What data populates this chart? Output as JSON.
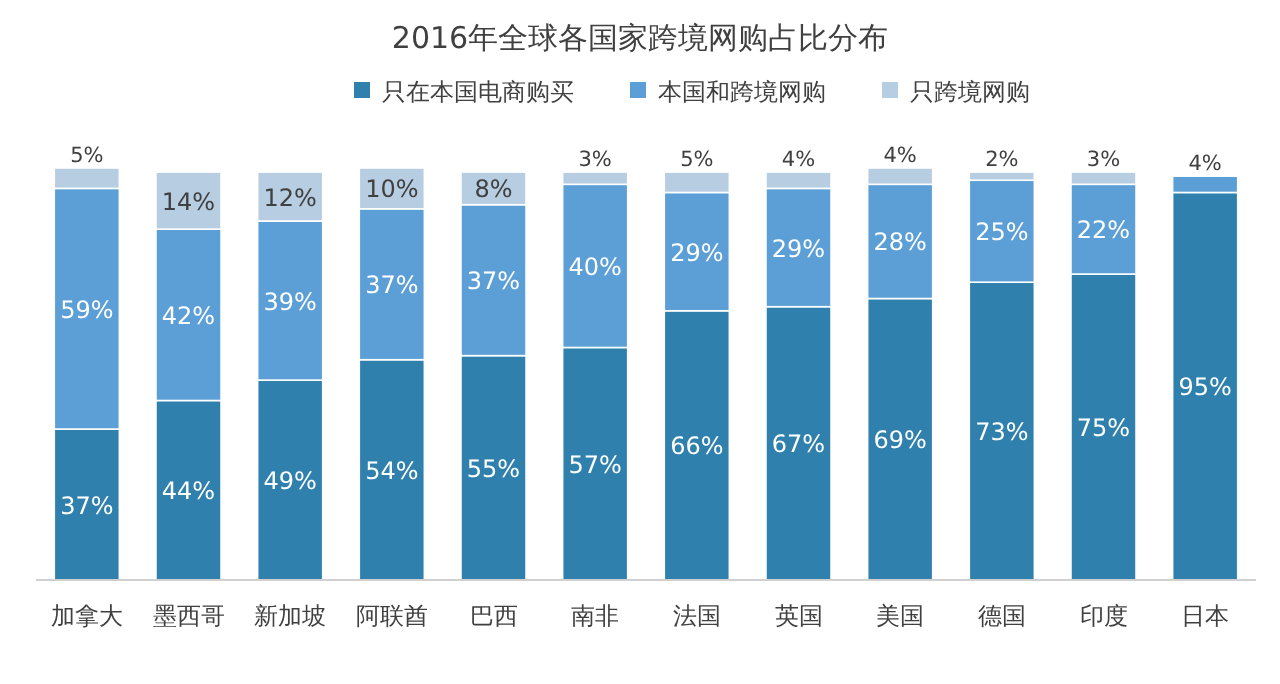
{
  "chart_data": {
    "type": "bar",
    "stacked": true,
    "title": "2016年全球各国家跨境网购占比分布",
    "legend": "top",
    "categories": [
      "加拿大",
      "墨西哥",
      "新加坡",
      "阿联酋",
      "巴西",
      "南非",
      "法国",
      "英国",
      "美国",
      "德国",
      "印度",
      "日本"
    ],
    "series": [
      {
        "name": "只在本国电商购买",
        "color": "#2f80ad",
        "values": [
          37,
          44,
          49,
          54,
          55,
          57,
          66,
          67,
          69,
          73,
          75,
          95
        ],
        "value_labels": [
          "37%",
          "44%",
          "49%",
          "54%",
          "55%",
          "57%",
          "66%",
          "67%",
          "69%",
          "73%",
          "75%",
          "95%"
        ]
      },
      {
        "name": "本国和跨境网购",
        "color": "#5b9fd6",
        "values": [
          59,
          42,
          39,
          37,
          37,
          40,
          29,
          29,
          28,
          25,
          22,
          4
        ],
        "value_labels": [
          "59%",
          "42%",
          "39%",
          "37%",
          "37%",
          "40%",
          "29%",
          "29%",
          "28%",
          "25%",
          "22%",
          "4%"
        ]
      },
      {
        "name": "只跨境网购",
        "color": "#b7cde2",
        "values": [
          5,
          14,
          12,
          10,
          8,
          3,
          5,
          4,
          4,
          2,
          3,
          null
        ],
        "value_labels": [
          "5%",
          "14%",
          "12%",
          "10%",
          "8%",
          "3%",
          "5%",
          "4%",
          "4%",
          "2%",
          "3%",
          null
        ]
      }
    ]
  }
}
